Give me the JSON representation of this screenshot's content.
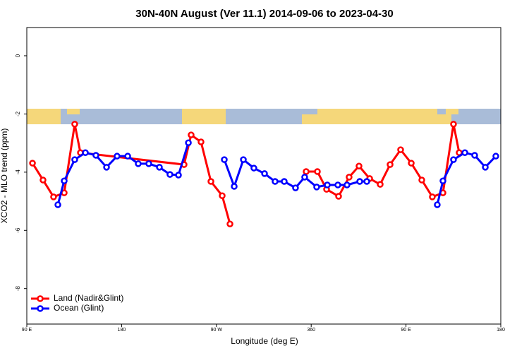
{
  "chart_data": {
    "type": "line",
    "title": "30N-40N August (Ver 11.1)   2014-09-06 to 2023-04-30",
    "x_label": "Longitude (deg E)",
    "y_label": "XCO2 - MLO trend (ppm)",
    "xlim": [
      90,
      540
    ],
    "ylim": [
      -9.22,
      0.97
    ],
    "xticks": [
      {
        "value": 90,
        "label": "90 E"
      },
      180,
      {
        "value": 270,
        "label": "90 W"
      },
      360,
      {
        "value": 450,
        "label": "90 E"
      },
      {
        "value": 540,
        "label": "180"
      }
    ],
    "yticks": [
      0,
      -2,
      -4,
      -6,
      -8
    ],
    "legend": "bottom-left",
    "series": [
      {
        "name": "Land (Nadir&Glint)",
        "color": "#ff0000",
        "x": [
          95.4,
          105.4,
          115.4,
          125.5,
          135.5,
          140.9,
          239.3,
          246,
          255.4,
          264.8,
          275.5,
          282.9,
          null,
          355.2,
          365.9,
          374.6,
          386,
          396,
          405.4,
          415.5,
          425.5,
          434.9,
          444.9,
          455,
          465,
          475,
          485.1,
          495.1,
          500.5
        ],
        "values": [
          -3.69,
          -4.27,
          -4.85,
          -4.71,
          -2.35,
          -3.33,
          -3.74,
          -2.72,
          -2.96,
          -4.32,
          -4.81,
          -5.78,
          null,
          -3.98,
          -3.98,
          -4.59,
          -4.83,
          -4.17,
          -3.79,
          -4.22,
          -4.42,
          -3.74,
          -3.23,
          -3.69,
          -4.27,
          -4.85,
          -4.71,
          -2.35,
          -3.33
        ]
      },
      {
        "name": "Ocean (Glint)",
        "color": "#0000ff",
        "x": [
          119.5,
          125.5,
          135.5,
          145.6,
          155.6,
          165.7,
          175.7,
          185.8,
          195.8,
          205.8,
          215.9,
          225.9,
          234,
          243.4,
          null,
          277.5,
          286.9,
          295.6,
          305.6,
          315.7,
          325.7,
          334.4,
          345.1,
          353.8,
          365.2,
          375.3,
          385.3,
          394,
          406.1,
          412.8,
          null,
          479.7,
          485.1,
          495.1,
          505.9,
          515.2,
          525.3,
          535.3
        ],
        "values": [
          -5.12,
          -4.3,
          -3.57,
          -3.33,
          -3.42,
          -3.83,
          -3.45,
          -3.45,
          -3.71,
          -3.71,
          -3.83,
          -4.08,
          -4.1,
          -2.99,
          null,
          -3.57,
          -4.49,
          -3.57,
          -3.86,
          -4.05,
          -4.32,
          -4.32,
          -4.54,
          -4.17,
          -4.51,
          -4.44,
          -4.44,
          -4.44,
          -4.32,
          -4.32,
          null,
          -5.12,
          -4.3,
          -3.57,
          -3.33,
          -3.42,
          -3.83,
          -3.45
        ]
      }
    ]
  }
}
